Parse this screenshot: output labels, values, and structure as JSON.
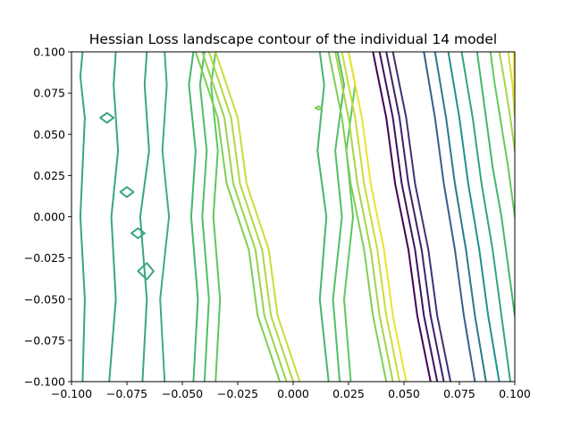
{
  "chart_data": {
    "type": "contour",
    "title": "Hessian Loss landscape contour of the individual 14 model",
    "xlabel": "",
    "ylabel": "",
    "xlim": [
      -0.1,
      0.1
    ],
    "ylim": [
      -0.1,
      0.1
    ],
    "xticks": [
      -0.1,
      -0.075,
      -0.05,
      -0.025,
      0.0,
      0.025,
      0.05,
      0.075,
      0.1
    ],
    "xtick_labels": [
      "−0.100",
      "−0.075",
      "−0.050",
      "−0.025",
      "0.000",
      "0.025",
      "0.050",
      "0.075",
      "0.100"
    ],
    "yticks": [
      -0.1,
      -0.075,
      -0.05,
      -0.025,
      0.0,
      0.025,
      0.05,
      0.075,
      0.1
    ],
    "ytick_labels": [
      "−0.100",
      "−0.075",
      "−0.050",
      "−0.025",
      "0.000",
      "0.025",
      "0.050",
      "0.075",
      "0.100"
    ],
    "grid": false,
    "colormap": "viridis",
    "colormap_stops": [
      "#440154",
      "#3b528b",
      "#21918c",
      "#5ec962",
      "#fde725"
    ],
    "contour_lines": [
      {
        "x": [
          -0.095,
          -0.094,
          -0.096,
          -0.095,
          -0.094,
          -0.096,
          -0.095
        ],
        "y": [
          -0.1,
          -0.05,
          0.0,
          0.03,
          0.06,
          0.085,
          0.1
        ],
        "level": 0.6
      },
      {
        "x": [
          -0.083,
          -0.08,
          -0.082,
          -0.079,
          -0.081,
          -0.08
        ],
        "y": [
          -0.1,
          -0.05,
          0.0,
          0.04,
          0.08,
          0.1
        ],
        "level": 0.6
      },
      {
        "x": [
          -0.068,
          -0.066,
          -0.069,
          -0.065,
          -0.067,
          -0.066
        ],
        "y": [
          -0.1,
          -0.05,
          0.0,
          0.04,
          0.08,
          0.1
        ],
        "level": 0.6
      },
      {
        "x": [
          -0.058,
          -0.06,
          -0.056,
          -0.059,
          -0.057,
          -0.058
        ],
        "y": [
          -0.1,
          -0.05,
          0.0,
          0.04,
          0.08,
          0.1
        ],
        "level": 0.62
      },
      {
        "x": [
          -0.045,
          -0.043,
          -0.046,
          -0.044,
          -0.047,
          -0.045
        ],
        "y": [
          -0.1,
          -0.05,
          0.0,
          0.04,
          0.08,
          0.1
        ],
        "level": 0.66
      },
      {
        "x": [
          -0.04,
          -0.038,
          -0.041,
          -0.039,
          -0.042,
          -0.04
        ],
        "y": [
          -0.1,
          -0.05,
          0.0,
          0.04,
          0.08,
          0.1
        ],
        "level": 0.7
      },
      {
        "x": [
          -0.035,
          -0.033,
          -0.036,
          -0.034,
          -0.037,
          -0.035
        ],
        "y": [
          -0.1,
          -0.05,
          0.0,
          0.04,
          0.08,
          0.1
        ],
        "level": 0.74
      },
      {
        "x": [
          -0.006,
          -0.016,
          -0.02,
          -0.03,
          -0.034,
          -0.044
        ],
        "y": [
          -0.1,
          -0.06,
          -0.02,
          0.02,
          0.06,
          0.1
        ],
        "level": 0.8
      },
      {
        "x": [
          -0.003,
          -0.013,
          -0.017,
          -0.027,
          -0.031,
          -0.041
        ],
        "y": [
          -0.1,
          -0.06,
          -0.02,
          0.02,
          0.06,
          0.1
        ],
        "level": 0.84
      },
      {
        "x": [
          0.0,
          -0.01,
          -0.014,
          -0.024,
          -0.028,
          -0.038
        ],
        "y": [
          -0.1,
          -0.06,
          -0.02,
          0.02,
          0.06,
          0.1
        ],
        "level": 0.88
      },
      {
        "x": [
          0.003,
          -0.007,
          -0.011,
          -0.021,
          -0.025,
          -0.035
        ],
        "y": [
          -0.1,
          -0.06,
          -0.02,
          0.02,
          0.06,
          0.1
        ],
        "level": 0.92
      },
      {
        "x": [
          0.016,
          0.012,
          0.015,
          0.011,
          0.014,
          0.012
        ],
        "y": [
          -0.1,
          -0.05,
          0.0,
          0.04,
          0.08,
          0.1
        ],
        "level": 0.66
      },
      {
        "x": [
          0.021,
          0.018,
          0.022,
          0.019,
          0.023,
          0.02
        ],
        "y": [
          -0.1,
          -0.05,
          0.0,
          0.04,
          0.08,
          0.1
        ],
        "level": 0.7
      },
      {
        "x": [
          0.026,
          0.023,
          0.027,
          0.024,
          0.028,
          0.025
        ],
        "y": [
          -0.1,
          -0.05,
          0.0,
          0.04,
          0.08,
          0.1
        ],
        "level": 0.74
      },
      {
        "x": [
          0.042,
          0.036,
          0.032,
          0.026,
          0.022,
          0.016
        ],
        "y": [
          -0.1,
          -0.06,
          -0.02,
          0.02,
          0.06,
          0.1
        ],
        "level": 0.8
      },
      {
        "x": [
          0.045,
          0.039,
          0.035,
          0.029,
          0.025,
          0.019
        ],
        "y": [
          -0.1,
          -0.06,
          -0.02,
          0.02,
          0.06,
          0.1
        ],
        "level": 0.86
      },
      {
        "x": [
          0.048,
          0.042,
          0.038,
          0.032,
          0.028,
          0.022
        ],
        "y": [
          -0.1,
          -0.06,
          -0.02,
          0.02,
          0.06,
          0.1
        ],
        "level": 0.92
      },
      {
        "x": [
          0.051,
          0.045,
          0.041,
          0.035,
          0.031,
          0.025
        ],
        "y": [
          -0.1,
          -0.06,
          -0.02,
          0.02,
          0.06,
          0.1
        ],
        "level": 0.97
      },
      {
        "x": [
          0.062,
          0.056,
          0.052,
          0.046,
          0.042,
          0.036
        ],
        "y": [
          -0.1,
          -0.06,
          -0.02,
          0.02,
          0.06,
          0.1
        ],
        "level": 0.0
      },
      {
        "x": [
          0.065,
          0.059,
          0.055,
          0.049,
          0.045,
          0.039
        ],
        "y": [
          -0.1,
          -0.06,
          -0.02,
          0.02,
          0.06,
          0.1
        ],
        "level": 0.05
      },
      {
        "x": [
          0.068,
          0.062,
          0.058,
          0.052,
          0.048,
          0.042
        ],
        "y": [
          -0.1,
          -0.06,
          -0.02,
          0.02,
          0.06,
          0.1
        ],
        "level": 0.1
      },
      {
        "x": [
          0.071,
          0.065,
          0.061,
          0.055,
          0.051,
          0.045
        ],
        "y": [
          -0.1,
          -0.06,
          -0.02,
          0.02,
          0.06,
          0.1
        ],
        "level": 0.15
      },
      {
        "x": [
          0.082,
          0.077,
          0.073,
          0.068,
          0.064,
          0.059
        ],
        "y": [
          -0.1,
          -0.06,
          -0.02,
          0.02,
          0.06,
          0.1
        ],
        "level": 0.3
      },
      {
        "x": [
          0.087,
          0.082,
          0.078,
          0.073,
          0.069,
          0.064
        ],
        "y": [
          -0.1,
          -0.06,
          -0.02,
          0.02,
          0.06,
          0.1
        ],
        "level": 0.4
      },
      {
        "x": [
          0.093,
          0.088,
          0.084,
          0.079,
          0.075,
          0.07
        ],
        "y": [
          -0.1,
          -0.06,
          -0.02,
          0.02,
          0.06,
          0.1
        ],
        "level": 0.5
      },
      {
        "x": [
          0.098,
          0.094,
          0.09,
          0.085,
          0.081,
          0.076
        ],
        "y": [
          -0.1,
          -0.06,
          -0.02,
          0.02,
          0.06,
          0.1
        ],
        "level": 0.58
      },
      {
        "x": [
          0.1,
          0.097,
          0.094,
          0.09,
          0.087,
          0.083
        ],
        "y": [
          -0.06,
          -0.03,
          0.0,
          0.03,
          0.06,
          0.1
        ],
        "level": 0.66
      },
      {
        "x": [
          0.1,
          0.097,
          0.094,
          0.091,
          0.089
        ],
        "y": [
          0.0,
          0.03,
          0.055,
          0.08,
          0.1
        ],
        "level": 0.76
      },
      {
        "x": [
          0.1,
          0.098,
          0.095,
          0.093
        ],
        "y": [
          0.04,
          0.06,
          0.085,
          0.1
        ],
        "level": 0.86
      },
      {
        "x": [
          0.1,
          0.099,
          0.097
        ],
        "y": [
          0.06,
          0.08,
          0.1
        ],
        "level": 0.93
      },
      {
        "x": [
          0.1,
          0.0995
        ],
        "y": [
          0.07,
          0.1
        ],
        "level": 1.0
      }
    ],
    "closed_contours": [
      {
        "x": [
          -0.087,
          -0.084,
          -0.081,
          -0.084,
          -0.087
        ],
        "y": [
          0.06,
          0.063,
          0.06,
          0.057,
          0.06
        ],
        "level": 0.6
      },
      {
        "x": [
          -0.078,
          -0.075,
          -0.072,
          -0.075,
          -0.078
        ],
        "y": [
          0.015,
          0.018,
          0.015,
          0.012,
          0.015
        ],
        "level": 0.6
      },
      {
        "x": [
          -0.073,
          -0.07,
          -0.067,
          -0.07,
          -0.073
        ],
        "y": [
          -0.01,
          -0.007,
          -0.01,
          -0.013,
          -0.01
        ],
        "level": 0.6
      },
      {
        "x": [
          -0.07,
          -0.066,
          -0.063,
          -0.066,
          -0.07
        ],
        "y": [
          -0.033,
          -0.028,
          -0.033,
          -0.038,
          -0.033
        ],
        "level": 0.6
      },
      {
        "x": [
          0.01,
          0.0115,
          0.013,
          0.0115,
          0.01
        ],
        "y": [
          0.066,
          0.067,
          0.066,
          0.065,
          0.066
        ],
        "level": 0.8
      }
    ]
  }
}
